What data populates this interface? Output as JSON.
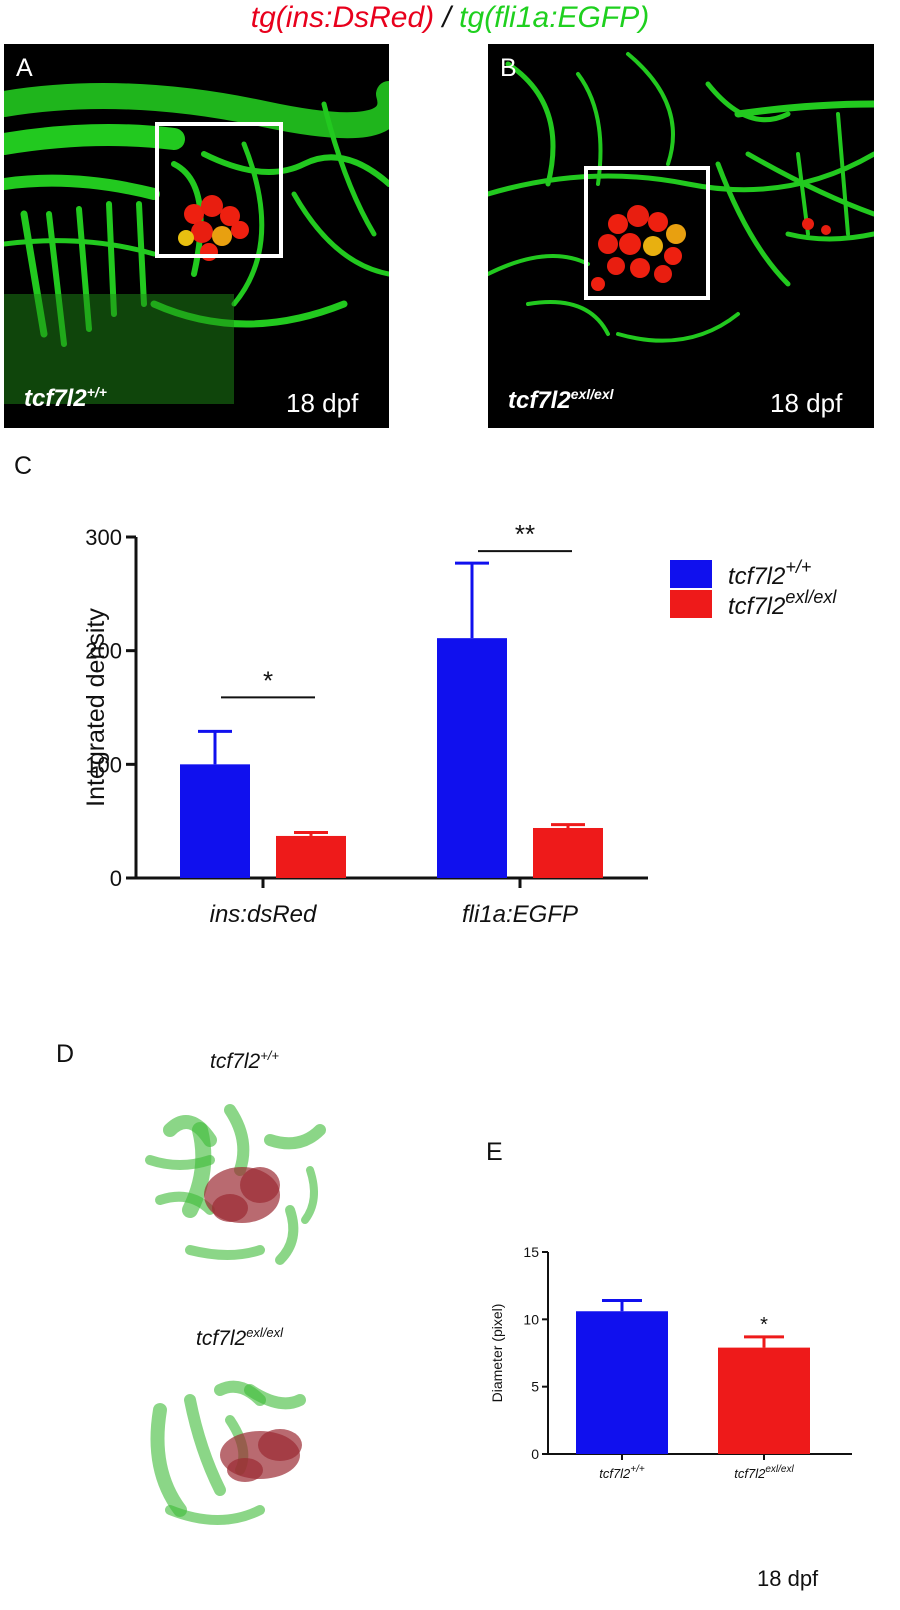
{
  "figure_title": {
    "red_part": "tg(ins:DsRed)",
    "separator": " / ",
    "green_part": "tg(fli1a:EGFP)"
  },
  "panel_a": {
    "letter": "A",
    "genotype_base": "tcf7l2",
    "genotype_sup": "+/+",
    "stage": "18 dpf"
  },
  "panel_b": {
    "letter": "B",
    "genotype_base": "tcf7l2",
    "genotype_sup": "exl/exl",
    "stage": "18 dpf"
  },
  "panel_c": {
    "letter": "C"
  },
  "panel_d": {
    "letter": "D",
    "top_label_base": "tcf7l2",
    "top_label_sup": "+/+",
    "bottom_label_base": "tcf7l2",
    "bottom_label_sup": "exl/exl"
  },
  "panel_e": {
    "letter": "E",
    "footer": "18 dpf"
  },
  "colors": {
    "wildtype": "#1010ee",
    "mutant": "#ee1a1a",
    "vessel_green": "#21d31f",
    "islet_red": "#e81e10"
  },
  "chart_data": [
    {
      "type": "bar",
      "panel": "C",
      "ylabel": "Integrated density",
      "xlabel": "",
      "ylim": [
        0,
        300
      ],
      "yticks": [
        0,
        100,
        200,
        300
      ],
      "categories": [
        "ins:dsRed",
        "fli1a:EGFP"
      ],
      "series": [
        {
          "name_base": "tcf7l2",
          "name_sup": "+/+",
          "values": [
            100,
            211
          ],
          "errors": [
            29,
            66
          ]
        },
        {
          "name_base": "tcf7l2",
          "name_sup": "exl/exl",
          "values": [
            37,
            44
          ],
          "errors": [
            3,
            3
          ]
        }
      ],
      "significance": [
        "*",
        "**"
      ],
      "legend_position": "top-right"
    },
    {
      "type": "bar",
      "panel": "E",
      "ylabel": "Diameter (pixel)",
      "ylim": [
        0,
        15
      ],
      "yticks": [
        0,
        5,
        10,
        15
      ],
      "categories": [
        {
          "base": "tcf7l2",
          "sup": "+/+"
        },
        {
          "base": "tcf7l2",
          "sup": "exl/exl"
        }
      ],
      "values": [
        10.6,
        7.9
      ],
      "errors": [
        0.8,
        0.8
      ],
      "significance": [
        "",
        "*"
      ]
    }
  ]
}
